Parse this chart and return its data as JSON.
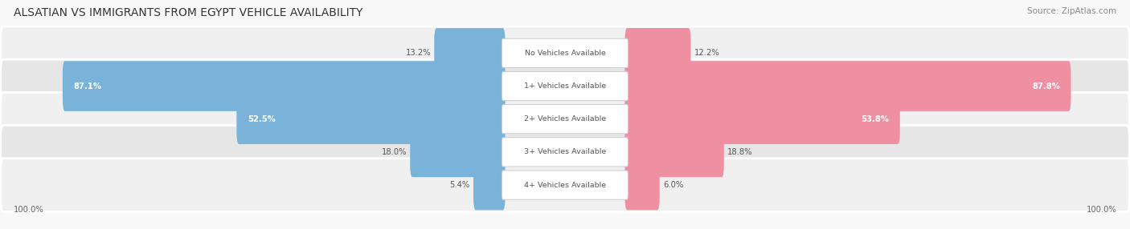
{
  "title": "ALSATIAN VS IMMIGRANTS FROM EGYPT VEHICLE AVAILABILITY",
  "source": "Source: ZipAtlas.com",
  "categories": [
    "No Vehicles Available",
    "1+ Vehicles Available",
    "2+ Vehicles Available",
    "3+ Vehicles Available",
    "4+ Vehicles Available"
  ],
  "alsatian_values": [
    13.2,
    87.1,
    52.5,
    18.0,
    5.4
  ],
  "egypt_values": [
    12.2,
    87.8,
    53.8,
    18.8,
    6.0
  ],
  "alsatian_color": "#7ab3d9",
  "egypt_color": "#ee8fa2",
  "row_colors": [
    "#f0f0f0",
    "#e6e6e6"
  ],
  "max_value": 100.0,
  "figsize": [
    14.06,
    2.86
  ],
  "dpi": 100,
  "center_label_color": "#555555",
  "value_outside_color": "#555555",
  "value_inside_color": "#ffffff",
  "inside_threshold": 40.0
}
